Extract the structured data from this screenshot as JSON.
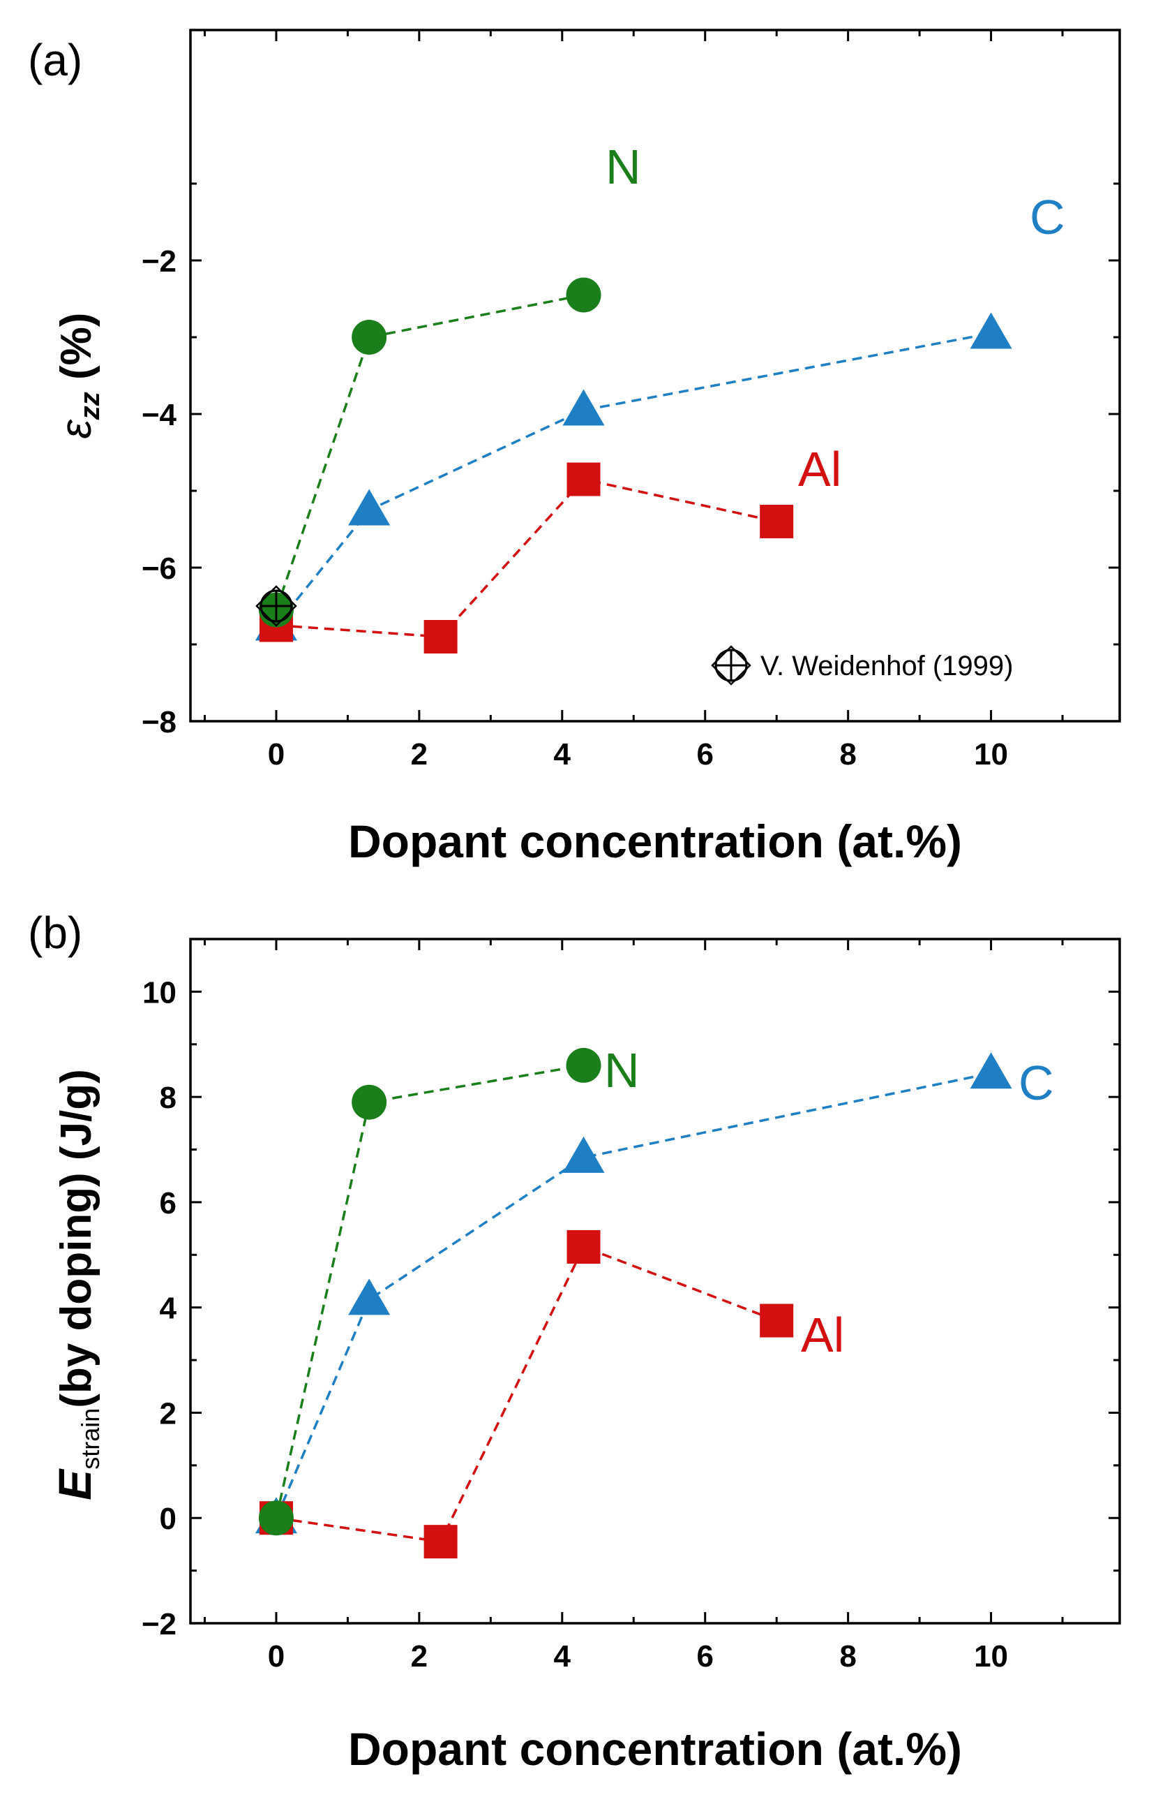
{
  "chart_data": [
    {
      "panel": "(a)",
      "type": "scatter",
      "xlabel": "Dopant concentration (at.%)",
      "ylabel_main": "ε",
      "ylabel_sub": "zz",
      "ylabel_unit": " (%)",
      "xlim": [
        -1.2,
        11.8
      ],
      "ylim": [
        -8,
        1
      ],
      "xticks": [
        0,
        2,
        4,
        6,
        8,
        10
      ],
      "xtick_labels": [
        "0",
        "2",
        "4",
        "6",
        "8",
        "10"
      ],
      "yticks": [
        -8,
        -6,
        -4,
        -2
      ],
      "ytick_labels": [
        "−8",
        "−6",
        "−4",
        "−2"
      ],
      "grid": false,
      "series": [
        {
          "name": "N",
          "label": "N",
          "color": "#1a7f1a",
          "marker": "circle",
          "x": [
            0,
            1.3,
            4.3
          ],
          "y": [
            -6.55,
            -3.0,
            -2.45
          ]
        },
        {
          "name": "C",
          "label": "C",
          "color": "#1f7fc4",
          "marker": "triangle",
          "x": [
            0,
            1.3,
            4.3,
            10
          ],
          "y": [
            -6.75,
            -5.25,
            -3.95,
            -2.95
          ]
        },
        {
          "name": "Al",
          "label": "Al",
          "color": "#d40f0f",
          "marker": "square",
          "x": [
            0,
            2.3,
            4.3,
            7
          ],
          "y": [
            -6.75,
            -6.9,
            -4.85,
            -5.4
          ]
        }
      ],
      "reference": {
        "label": "V. Weidenhof (1999)",
        "marker": "circle-cross",
        "color": "#000000",
        "x": [
          0
        ],
        "y": [
          -6.5
        ]
      },
      "legend_position": "bottom-right"
    },
    {
      "panel": "(b)",
      "type": "scatter",
      "xlabel": "Dopant concentration (at.%)",
      "ylabel_main": "E",
      "ylabel_sub": "strain",
      "ylabel_unit": "(by doping) (J/g)",
      "xlim": [
        -1.2,
        11.8
      ],
      "ylim": [
        -2,
        11
      ],
      "xticks": [
        0,
        2,
        4,
        6,
        8,
        10
      ],
      "xtick_labels": [
        "0",
        "2",
        "4",
        "6",
        "8",
        "10"
      ],
      "yticks": [
        -2,
        0,
        2,
        4,
        6,
        8,
        10
      ],
      "ytick_labels": [
        "−2",
        "0",
        "2",
        "4",
        "6",
        "8",
        "10"
      ],
      "grid": false,
      "series": [
        {
          "name": "N",
          "label": "N",
          "color": "#1a7f1a",
          "marker": "circle",
          "x": [
            0,
            1.3,
            4.3
          ],
          "y": [
            0,
            7.9,
            8.6
          ]
        },
        {
          "name": "C",
          "label": "C",
          "color": "#1f7fc4",
          "marker": "triangle",
          "x": [
            0,
            1.3,
            4.3,
            10
          ],
          "y": [
            0,
            4.15,
            6.85,
            8.45
          ]
        },
        {
          "name": "Al",
          "label": "Al",
          "color": "#d40f0f",
          "marker": "square",
          "x": [
            0,
            2.3,
            4.3,
            7
          ],
          "y": [
            0,
            -0.45,
            5.15,
            3.75
          ]
        }
      ]
    }
  ]
}
